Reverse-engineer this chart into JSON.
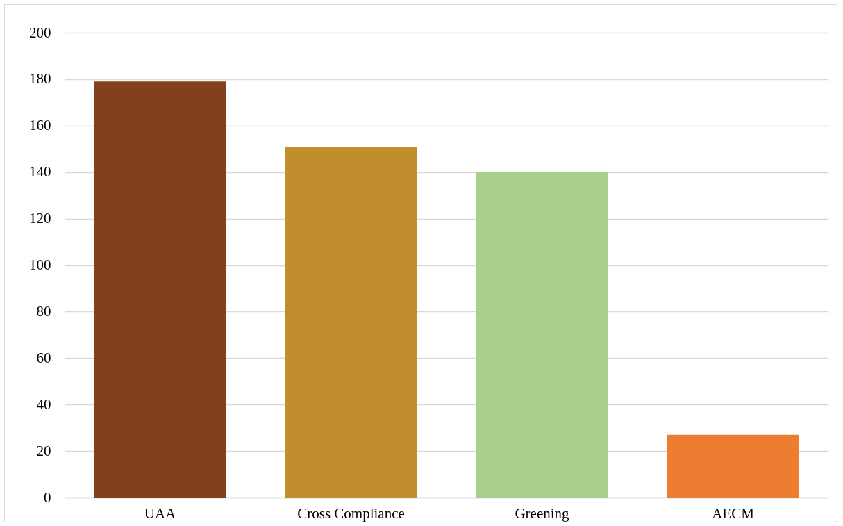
{
  "chart_data": {
    "type": "bar",
    "categories": [
      "UAA",
      "Cross Compliance",
      "Greening",
      "AECM"
    ],
    "values": [
      179,
      151,
      140,
      27
    ],
    "colors": [
      "#843f1c",
      "#c08e2d",
      "#a9cf8f",
      "#ec7d31"
    ],
    "ylim": [
      0,
      200
    ],
    "yticks": [
      0,
      20,
      40,
      60,
      80,
      100,
      120,
      140,
      160,
      180,
      200
    ],
    "grid": "y"
  }
}
